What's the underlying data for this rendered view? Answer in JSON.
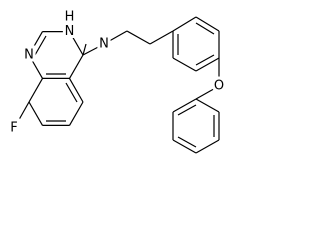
{
  "atoms": {
    "h3": "H",
    "n3": "N",
    "n1": "N",
    "amine_n": "N",
    "f": "F",
    "o": "O"
  }
}
